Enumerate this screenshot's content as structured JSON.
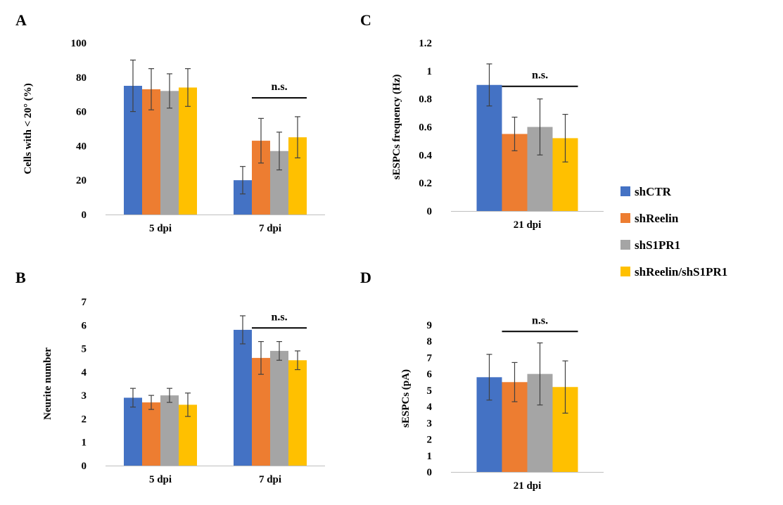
{
  "legend": {
    "items": [
      {
        "label": "shCTR",
        "color": "#4472C4"
      },
      {
        "label": "shReelin",
        "color": "#ED7D31"
      },
      {
        "label": "shS1PR1",
        "color": "#A5A5A5"
      },
      {
        "label": "shReelin/shS1PR1",
        "color": "#FFC000"
      }
    ]
  },
  "chart_data": [
    {
      "panel": "A",
      "type": "bar",
      "ylabel": "Cells with < 20° (%)",
      "ylim": [
        0,
        100
      ],
      "yticks": [
        0,
        20,
        40,
        60,
        80,
        100
      ],
      "categories": [
        "5 dpi",
        "7 dpi"
      ],
      "series": [
        {
          "name": "shCTR",
          "values": [
            75,
            20
          ],
          "errors": [
            15,
            8
          ]
        },
        {
          "name": "shReelin",
          "values": [
            73,
            43
          ],
          "errors": [
            12,
            13
          ]
        },
        {
          "name": "shS1PR1",
          "values": [
            72,
            37
          ],
          "errors": [
            10,
            11
          ]
        },
        {
          "name": "shReelin/shS1PR1",
          "values": [
            74,
            45
          ],
          "errors": [
            11,
            12
          ]
        }
      ],
      "annotations": [
        {
          "text": "n.s.",
          "category": "7 dpi",
          "from_series": 1,
          "to_series": 3,
          "y": 68
        }
      ],
      "grid": false
    },
    {
      "panel": "B",
      "type": "bar",
      "ylabel": "Neurite number",
      "ylim": [
        0,
        7
      ],
      "yticks": [
        0,
        1,
        2,
        3,
        4,
        5,
        6,
        7
      ],
      "categories": [
        "5 dpi",
        "7 dpi"
      ],
      "series": [
        {
          "name": "shCTR",
          "values": [
            2.9,
            5.8
          ],
          "errors": [
            0.4,
            0.6
          ]
        },
        {
          "name": "shReelin",
          "values": [
            2.7,
            4.6
          ],
          "errors": [
            0.3,
            0.7
          ]
        },
        {
          "name": "shS1PR1",
          "values": [
            3.0,
            4.9
          ],
          "errors": [
            0.3,
            0.4
          ]
        },
        {
          "name": "shReelin/shS1PR1",
          "values": [
            2.6,
            4.5
          ],
          "errors": [
            0.5,
            0.4
          ]
        }
      ],
      "annotations": [
        {
          "text": "n.s.",
          "category": "7 dpi",
          "from_series": 1,
          "to_series": 3,
          "y": 5.88
        }
      ],
      "grid": false
    },
    {
      "panel": "C",
      "type": "bar",
      "ylabel": "sESPCs frequency (Hz)",
      "ylim": [
        0,
        1.2
      ],
      "yticks": [
        0,
        0.2,
        0.4,
        0.6,
        0.8,
        1,
        1.2
      ],
      "categories": [
        "21 dpi"
      ],
      "series": [
        {
          "name": "shCTR",
          "values": [
            0.9
          ],
          "errors": [
            0.15
          ]
        },
        {
          "name": "shReelin",
          "values": [
            0.55
          ],
          "errors": [
            0.12
          ]
        },
        {
          "name": "shS1PR1",
          "values": [
            0.6
          ],
          "errors": [
            0.2
          ]
        },
        {
          "name": "shReelin/shS1PR1",
          "values": [
            0.52
          ],
          "errors": [
            0.17
          ]
        }
      ],
      "annotations": [
        {
          "text": "n.s.",
          "category": "21 dpi",
          "from_series": 1,
          "to_series": 3,
          "y": 0.89
        }
      ],
      "grid": false
    },
    {
      "panel": "D",
      "type": "bar",
      "ylabel": "sESPCs (pA)",
      "ylim": [
        0,
        9
      ],
      "yticks": [
        0,
        1,
        2,
        3,
        4,
        5,
        6,
        7,
        8,
        9
      ],
      "categories": [
        "21 dpi"
      ],
      "series": [
        {
          "name": "shCTR",
          "values": [
            5.8
          ],
          "errors": [
            1.4
          ]
        },
        {
          "name": "shReelin",
          "values": [
            5.5
          ],
          "errors": [
            1.2
          ]
        },
        {
          "name": "shS1PR1",
          "values": [
            6.0
          ],
          "errors": [
            1.9
          ]
        },
        {
          "name": "shReelin/shS1PR1",
          "values": [
            5.2
          ],
          "errors": [
            1.6
          ]
        }
      ],
      "annotations": [
        {
          "text": "n.s.",
          "category": "21 dpi",
          "from_series": 1,
          "to_series": 3,
          "y": 8.6
        }
      ],
      "grid": false
    }
  ]
}
